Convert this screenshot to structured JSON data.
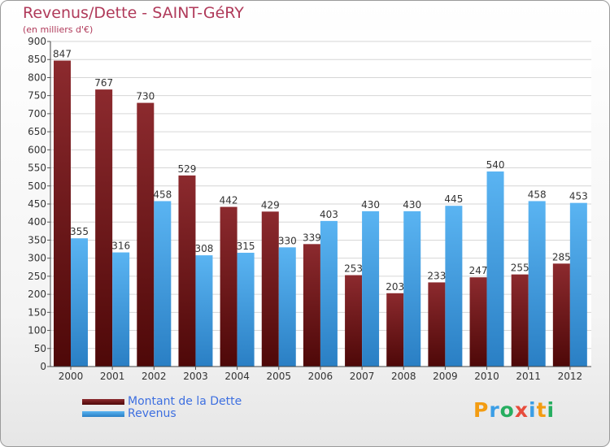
{
  "chart_data": {
    "type": "bar",
    "title": "Revenus/Dette - SAINT-GéRY",
    "subtitle": "(en milliers d'€)",
    "categories": [
      "2000",
      "2001",
      "2002",
      "2003",
      "2004",
      "2005",
      "2006",
      "2007",
      "2008",
      "2009",
      "2010",
      "2011",
      "2012"
    ],
    "series": [
      {
        "name": "Montant de la Dette",
        "color": "#7a1a1a",
        "values": [
          847,
          767,
          730,
          529,
          442,
          429,
          339,
          253,
          203,
          233,
          247,
          255,
          285
        ]
      },
      {
        "name": "Revenus",
        "color": "#3b9ee6",
        "values": [
          355,
          316,
          458,
          308,
          315,
          330,
          403,
          430,
          430,
          445,
          540,
          458,
          453
        ]
      }
    ],
    "ylim": [
      0,
      900
    ],
    "yticks": [
      0,
      50,
      100,
      150,
      200,
      250,
      300,
      350,
      400,
      450,
      500,
      550,
      600,
      650,
      700,
      750,
      800,
      850,
      900
    ],
    "grid": true,
    "legend_position": "bottom-left"
  },
  "logo": {
    "letters": [
      "P",
      "r",
      "o",
      "x",
      "i",
      "t",
      "i"
    ],
    "colors": [
      "#f39c12",
      "#3b9ee6",
      "#27ae60",
      "#e74c3c",
      "#3b9ee6",
      "#f39c12",
      "#27ae60"
    ]
  }
}
